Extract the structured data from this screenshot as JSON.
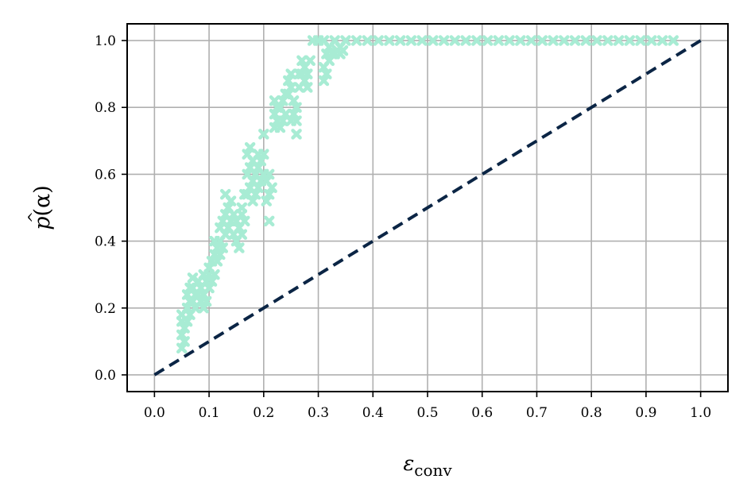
{
  "chart_data": {
    "type": "scatter",
    "title": "",
    "xlabel": {
      "base": "ε",
      "sub": "conv"
    },
    "ylabel": {
      "text": "p",
      "hat": "^",
      "arg": "(α)"
    },
    "xlim": [
      -0.05,
      1.05
    ],
    "ylim": [
      -0.05,
      1.05
    ],
    "xticks": [
      "0.0",
      "0.1",
      "0.2",
      "0.3",
      "0.4",
      "0.5",
      "0.6",
      "0.7",
      "0.8",
      "0.9",
      "1.0"
    ],
    "yticks": [
      "0.0",
      "0.2",
      "0.4",
      "0.6",
      "0.8",
      "1.0"
    ],
    "grid": true,
    "colors": {
      "scatter": "#a8ecd4",
      "reference": "#0b2545",
      "grid": "#b0b0b0"
    },
    "series": [
      {
        "marker": "x",
        "points": [
          [
            0.05,
            0.08
          ],
          [
            0.05,
            0.12
          ],
          [
            0.05,
            0.16
          ],
          [
            0.05,
            0.18
          ],
          [
            0.055,
            0.1
          ],
          [
            0.055,
            0.14
          ],
          [
            0.06,
            0.16
          ],
          [
            0.06,
            0.2
          ],
          [
            0.06,
            0.24
          ],
          [
            0.065,
            0.18
          ],
          [
            0.065,
            0.22
          ],
          [
            0.065,
            0.26
          ],
          [
            0.07,
            0.22
          ],
          [
            0.07,
            0.26
          ],
          [
            0.07,
            0.29
          ],
          [
            0.075,
            0.2
          ],
          [
            0.075,
            0.24
          ],
          [
            0.08,
            0.24
          ],
          [
            0.08,
            0.28
          ],
          [
            0.085,
            0.22
          ],
          [
            0.085,
            0.26
          ],
          [
            0.09,
            0.2
          ],
          [
            0.09,
            0.24
          ],
          [
            0.09,
            0.3
          ],
          [
            0.095,
            0.22
          ],
          [
            0.095,
            0.28
          ],
          [
            0.1,
            0.26
          ],
          [
            0.1,
            0.3
          ],
          [
            0.1,
            0.32
          ],
          [
            0.105,
            0.28
          ],
          [
            0.105,
            0.34
          ],
          [
            0.11,
            0.3
          ],
          [
            0.11,
            0.36
          ],
          [
            0.11,
            0.4
          ],
          [
            0.115,
            0.34
          ],
          [
            0.115,
            0.38
          ],
          [
            0.12,
            0.36
          ],
          [
            0.12,
            0.4
          ],
          [
            0.12,
            0.44
          ],
          [
            0.125,
            0.38
          ],
          [
            0.125,
            0.46
          ],
          [
            0.13,
            0.42
          ],
          [
            0.13,
            0.48
          ],
          [
            0.13,
            0.54
          ],
          [
            0.135,
            0.44
          ],
          [
            0.135,
            0.5
          ],
          [
            0.14,
            0.46
          ],
          [
            0.14,
            0.52
          ],
          [
            0.145,
            0.42
          ],
          [
            0.145,
            0.48
          ],
          [
            0.15,
            0.4
          ],
          [
            0.15,
            0.46
          ],
          [
            0.155,
            0.38
          ],
          [
            0.155,
            0.44
          ],
          [
            0.16,
            0.42
          ],
          [
            0.16,
            0.48
          ],
          [
            0.16,
            0.5
          ],
          [
            0.165,
            0.46
          ],
          [
            0.165,
            0.54
          ],
          [
            0.17,
            0.54
          ],
          [
            0.17,
            0.6
          ],
          [
            0.17,
            0.66
          ],
          [
            0.175,
            0.56
          ],
          [
            0.175,
            0.62
          ],
          [
            0.175,
            0.68
          ],
          [
            0.18,
            0.52
          ],
          [
            0.18,
            0.58
          ],
          [
            0.18,
            0.64
          ],
          [
            0.185,
            0.54
          ],
          [
            0.185,
            0.6
          ],
          [
            0.19,
            0.56
          ],
          [
            0.19,
            0.62
          ],
          [
            0.19,
            0.66
          ],
          [
            0.195,
            0.58
          ],
          [
            0.195,
            0.64
          ],
          [
            0.2,
            0.6
          ],
          [
            0.2,
            0.66
          ],
          [
            0.2,
            0.72
          ],
          [
            0.205,
            0.52
          ],
          [
            0.205,
            0.58
          ],
          [
            0.21,
            0.54
          ],
          [
            0.21,
            0.6
          ],
          [
            0.21,
            0.46
          ],
          [
            0.215,
            0.56
          ],
          [
            0.22,
            0.74
          ],
          [
            0.22,
            0.78
          ],
          [
            0.22,
            0.82
          ],
          [
            0.225,
            0.76
          ],
          [
            0.225,
            0.8
          ],
          [
            0.23,
            0.74
          ],
          [
            0.23,
            0.8
          ],
          [
            0.235,
            0.76
          ],
          [
            0.235,
            0.82
          ],
          [
            0.24,
            0.78
          ],
          [
            0.24,
            0.84
          ],
          [
            0.245,
            0.84
          ],
          [
            0.245,
            0.88
          ],
          [
            0.25,
            0.86
          ],
          [
            0.25,
            0.9
          ],
          [
            0.25,
            0.76
          ],
          [
            0.255,
            0.78
          ],
          [
            0.255,
            0.82
          ],
          [
            0.26,
            0.72
          ],
          [
            0.26,
            0.76
          ],
          [
            0.26,
            0.8
          ],
          [
            0.265,
            0.86
          ],
          [
            0.265,
            0.9
          ],
          [
            0.27,
            0.9
          ],
          [
            0.27,
            0.94
          ],
          [
            0.275,
            0.88
          ],
          [
            0.275,
            0.92
          ],
          [
            0.28,
            0.86
          ],
          [
            0.28,
            0.9
          ],
          [
            0.285,
            0.94
          ],
          [
            0.29,
            1.0
          ],
          [
            0.3,
            1.0
          ],
          [
            0.31,
            1.0
          ],
          [
            0.31,
            0.88
          ],
          [
            0.31,
            0.92
          ],
          [
            0.315,
            0.9
          ],
          [
            0.315,
            0.96
          ],
          [
            0.32,
            0.98
          ],
          [
            0.32,
            0.94
          ],
          [
            0.325,
            0.96
          ],
          [
            0.33,
            0.96
          ],
          [
            0.33,
            1.0
          ],
          [
            0.335,
            0.97
          ],
          [
            0.34,
            0.96
          ],
          [
            0.34,
            0.98
          ],
          [
            0.345,
            0.97
          ],
          [
            0.35,
            1.0
          ],
          [
            0.37,
            1.0
          ],
          [
            0.39,
            1.0
          ],
          [
            0.41,
            1.0
          ],
          [
            0.43,
            1.0
          ],
          [
            0.45,
            1.0
          ],
          [
            0.47,
            1.0
          ],
          [
            0.49,
            1.0
          ],
          [
            0.51,
            1.0
          ],
          [
            0.53,
            1.0
          ],
          [
            0.55,
            1.0
          ],
          [
            0.57,
            1.0
          ],
          [
            0.59,
            1.0
          ],
          [
            0.61,
            1.0
          ],
          [
            0.63,
            1.0
          ],
          [
            0.65,
            1.0
          ],
          [
            0.67,
            1.0
          ],
          [
            0.69,
            1.0
          ],
          [
            0.71,
            1.0
          ],
          [
            0.73,
            1.0
          ],
          [
            0.75,
            1.0
          ],
          [
            0.77,
            1.0
          ],
          [
            0.79,
            1.0
          ],
          [
            0.81,
            1.0
          ],
          [
            0.83,
            1.0
          ],
          [
            0.85,
            1.0
          ],
          [
            0.87,
            1.0
          ],
          [
            0.89,
            1.0
          ],
          [
            0.91,
            1.0
          ],
          [
            0.93,
            1.0
          ],
          [
            0.95,
            1.0
          ]
        ]
      },
      {
        "type": "line",
        "style": "dashed",
        "x": [
          0.0,
          1.0
        ],
        "y": [
          0.0,
          1.0
        ]
      }
    ]
  }
}
